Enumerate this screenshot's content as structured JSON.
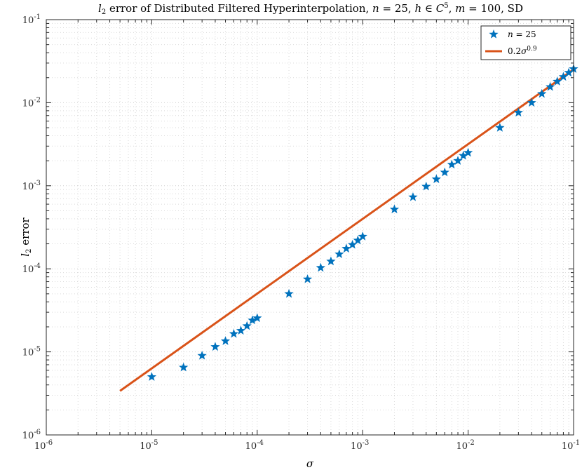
{
  "chart_data": {
    "type": "scatter",
    "title": "l2 error of Distributed Filtered Hyperinterpolation, n = 25, h ∈ C5, m = 100, SD",
    "xlabel": "σ",
    "ylabel": "l2 error",
    "xscale": "log",
    "yscale": "log",
    "xlim": [
      1e-06,
      0.1
    ],
    "ylim": [
      1e-06,
      0.1
    ],
    "grid": true,
    "legend_position": "top-right",
    "x_ticks": [
      1e-06,
      1e-05,
      0.0001,
      0.001,
      0.01,
      0.1
    ],
    "x_tick_labels": [
      "10-6",
      "10-5",
      "10-4",
      "10-3",
      "10-2",
      "10-1"
    ],
    "y_ticks": [
      1e-06,
      1e-05,
      0.0001,
      0.001,
      0.01,
      0.1
    ],
    "y_tick_labels": [
      "10-6",
      "10-5",
      "10-4",
      "10-3",
      "10-2",
      "10-1"
    ],
    "series": [
      {
        "name": "n = 25",
        "kind": "scatter",
        "marker": "star",
        "color": "#0072BD",
        "x": [
          1e-05,
          2e-05,
          3e-05,
          4e-05,
          5e-05,
          6e-05,
          7e-05,
          8e-05,
          9e-05,
          0.0001,
          0.0002,
          0.0003,
          0.0004,
          0.0005,
          0.0006,
          0.0007,
          0.0008,
          0.0009,
          0.001,
          0.002,
          0.003,
          0.004,
          0.005,
          0.006,
          0.007,
          0.008,
          0.009,
          0.01,
          0.02,
          0.03,
          0.04,
          0.05,
          0.06,
          0.07,
          0.08,
          0.09,
          0.1
        ],
        "y": [
          5e-06,
          6.5e-06,
          9e-06,
          1.15e-05,
          1.35e-05,
          1.65e-05,
          1.8e-05,
          2.05e-05,
          2.4e-05,
          2.55e-05,
          5e-05,
          7.5e-05,
          0.000103,
          0.000123,
          0.00015,
          0.000175,
          0.000195,
          0.00022,
          0.000245,
          0.00052,
          0.00073,
          0.00098,
          0.0012,
          0.00145,
          0.0018,
          0.002,
          0.0023,
          0.0025,
          0.005,
          0.0076,
          0.01,
          0.0128,
          0.0155,
          0.018,
          0.0205,
          0.023,
          0.0255
        ]
      },
      {
        "name": "0.2σ0.9",
        "kind": "line",
        "color": "#D95319",
        "formula": "0.2*x^0.9",
        "x": [
          5e-06,
          0.1
        ]
      }
    ]
  }
}
